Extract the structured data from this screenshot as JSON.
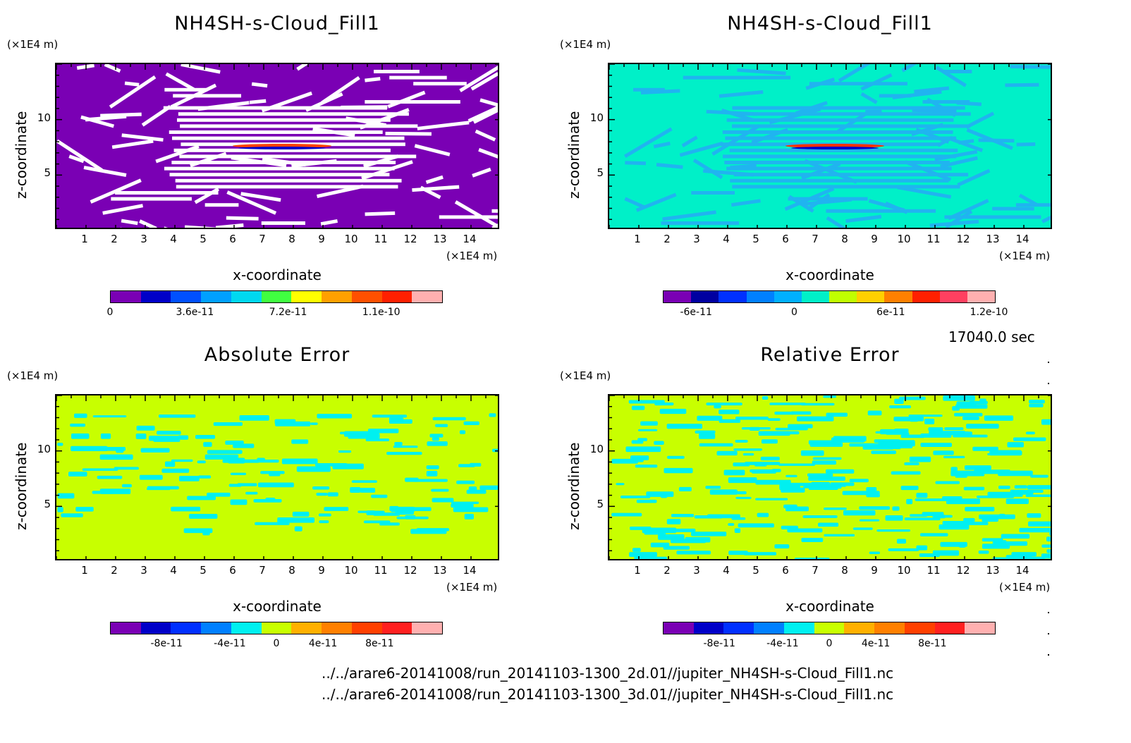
{
  "panels": [
    {
      "id": "p1",
      "title": "NH4SH-s-Cloud_Fill1",
      "z_unit": "(×1E4 m)",
      "x_unit": "(×1E4 m)",
      "xlabel": "x-coordinate",
      "ylabel": "z-coordinate",
      "x_ticks": [
        "1",
        "2",
        "3",
        "4",
        "5",
        "6",
        "7",
        "8",
        "9",
        "10",
        "11",
        "12",
        "13",
        "14"
      ],
      "z_ticks": [
        "5",
        "10"
      ],
      "background_color": "#7a00b4",
      "pattern_color": "#ffffff",
      "colorbar": {
        "colors": [
          "#7a00b4",
          "#0000c8",
          "#0050ff",
          "#00a0ff",
          "#00d8f0",
          "#40ff40",
          "#ffff00",
          "#ffa000",
          "#ff5000",
          "#ff2000",
          "#ffb0b0"
        ],
        "labels": [
          "0",
          "3.6e-11",
          "7.2e-11",
          "1.1e-10"
        ]
      }
    },
    {
      "id": "p2",
      "title": "NH4SH-s-Cloud_Fill1",
      "z_unit": "(×1E4 m)",
      "x_unit": "(×1E4 m)",
      "xlabel": "x-coordinate",
      "ylabel": "z-coordinate",
      "x_ticks": [
        "1",
        "2",
        "3",
        "4",
        "5",
        "6",
        "7",
        "8",
        "9",
        "10",
        "11",
        "12",
        "13",
        "14"
      ],
      "z_ticks": [
        "5",
        "10"
      ],
      "background_color": "#00f0c8",
      "pattern_color": "#20b4f0",
      "colorbar": {
        "colors": [
          "#7a00b4",
          "#0000a0",
          "#0030ff",
          "#0080ff",
          "#00b0ff",
          "#00f0c8",
          "#c0ff00",
          "#ffd000",
          "#ff8000",
          "#ff2000",
          "#ff4060",
          "#ffb0b0"
        ],
        "labels": [
          "-6e-11",
          "0",
          "6e-11",
          "1.2e-10"
        ]
      }
    },
    {
      "id": "p3",
      "title": "Absolute Error",
      "z_unit": "(×1E4 m)",
      "x_unit": "(×1E4 m)",
      "xlabel": "x-coordinate",
      "ylabel": "z-coordinate",
      "x_ticks": [
        "1",
        "2",
        "3",
        "4",
        "5",
        "6",
        "7",
        "8",
        "9",
        "10",
        "11",
        "12",
        "13",
        "14"
      ],
      "z_ticks": [
        "5",
        "10"
      ],
      "background_color": "#c8ff00",
      "pattern_color": "#00f0f0",
      "colorbar": {
        "colors": [
          "#7a00b4",
          "#0000c8",
          "#0030ff",
          "#0080ff",
          "#00f0f0",
          "#c8ff00",
          "#ffb000",
          "#ff8000",
          "#ff4000",
          "#ff2020",
          "#ffb0b0"
        ],
        "labels": [
          "-8e-11",
          "-4e-11",
          "0",
          "4e-11",
          "8e-11"
        ]
      }
    },
    {
      "id": "p4",
      "title": "Relative Error",
      "z_unit": "(×1E4 m)",
      "x_unit": "(×1E4 m)",
      "xlabel": "x-coordinate",
      "ylabel": "z-coordinate",
      "x_ticks": [
        "1",
        "2",
        "3",
        "4",
        "5",
        "6",
        "7",
        "8",
        "9",
        "10",
        "11",
        "12",
        "13",
        "14"
      ],
      "z_ticks": [
        "5",
        "10"
      ],
      "background_color": "#c8ff00",
      "pattern_color": "#00f0f0",
      "colorbar": {
        "colors": [
          "#7a00b4",
          "#0000c8",
          "#0030ff",
          "#0080ff",
          "#00f0f0",
          "#c8ff00",
          "#ffb000",
          "#ff8000",
          "#ff4000",
          "#ff2020",
          "#ffb0b0"
        ],
        "labels": [
          "-8e-11",
          "-4e-11",
          "0",
          "4e-11",
          "8e-11"
        ]
      }
    }
  ],
  "time_label": "17040.0 sec",
  "files": [
    "../../arare6-20141008/run_20141103-1300_2d.01//jupiter_NH4SH-s-Cloud_Fill1.nc",
    "../../arare6-20141008/run_20141103-1300_3d.01//jupiter_NH4SH-s-Cloud_Fill1.nc"
  ],
  "chart_data": [
    {
      "type": "heatmap",
      "title": "NH4SH-s-Cloud_Fill1",
      "xlabel": "x-coordinate",
      "ylabel": "z-coordinate",
      "x_unit": "(×1E4 m)",
      "z_unit": "(×1E4 m)",
      "xlim": [
        0,
        15
      ],
      "ylim": [
        0,
        15
      ],
      "x_ticks": [
        1,
        2,
        3,
        4,
        5,
        6,
        7,
        8,
        9,
        10,
        11,
        12,
        13,
        14
      ],
      "y_ticks": [
        5,
        10
      ],
      "colorbar_range": [
        0,
        1.2e-10
      ],
      "colorbar_labels": [
        "0",
        "3.6e-11",
        "7.2e-11",
        "1.1e-10"
      ]
    },
    {
      "type": "heatmap",
      "title": "NH4SH-s-Cloud_Fill1",
      "xlabel": "x-coordinate",
      "ylabel": "z-coordinate",
      "x_unit": "(×1E4 m)",
      "z_unit": "(×1E4 m)",
      "xlim": [
        0,
        15
      ],
      "ylim": [
        0,
        15
      ],
      "x_ticks": [
        1,
        2,
        3,
        4,
        5,
        6,
        7,
        8,
        9,
        10,
        11,
        12,
        13,
        14
      ],
      "y_ticks": [
        5,
        10
      ],
      "colorbar_labels": [
        "-6e-11",
        "0",
        "6e-11",
        "1.2e-10"
      ]
    },
    {
      "type": "heatmap",
      "title": "Absolute Error",
      "xlabel": "x-coordinate",
      "ylabel": "z-coordinate",
      "x_unit": "(×1E4 m)",
      "z_unit": "(×1E4 m)",
      "xlim": [
        0,
        15
      ],
      "ylim": [
        0,
        15
      ],
      "x_ticks": [
        1,
        2,
        3,
        4,
        5,
        6,
        7,
        8,
        9,
        10,
        11,
        12,
        13,
        14
      ],
      "y_ticks": [
        5,
        10
      ],
      "colorbar_labels": [
        "-8e-11",
        "-4e-11",
        "0",
        "4e-11",
        "8e-11"
      ]
    },
    {
      "type": "heatmap",
      "title": "Relative Error",
      "xlabel": "x-coordinate",
      "ylabel": "z-coordinate",
      "x_unit": "(×1E4 m)",
      "z_unit": "(×1E4 m)",
      "xlim": [
        0,
        15
      ],
      "ylim": [
        0,
        15
      ],
      "x_ticks": [
        1,
        2,
        3,
        4,
        5,
        6,
        7,
        8,
        9,
        10,
        11,
        12,
        13,
        14
      ],
      "y_ticks": [
        5,
        10
      ],
      "colorbar_labels": [
        "-8e-11",
        "-4e-11",
        "0",
        "4e-11",
        "8e-11"
      ]
    }
  ]
}
